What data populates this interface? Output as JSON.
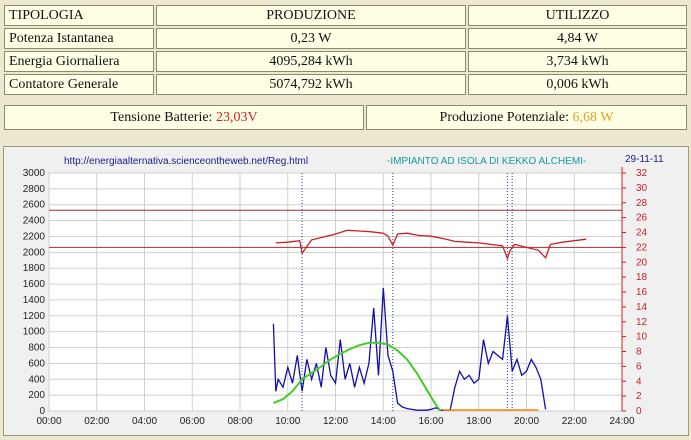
{
  "table": {
    "headers": [
      "TIPOLOGIA",
      "PRODUZIONE",
      "UTILIZZO"
    ],
    "rows": [
      {
        "label": "Potenza Istantanea",
        "produzione": "0,23 W",
        "utilizzo": "4,84 W"
      },
      {
        "label": "Energia Giornaliera",
        "produzione": "4095,284 kWh",
        "utilizzo": "3,734 kWh"
      },
      {
        "label": "Contatore Generale",
        "produzione": "5074,792 kWh",
        "utilizzo": "0,006 kWh"
      }
    ]
  },
  "status": {
    "tensione_label": "Tensione Batterie:",
    "tensione_value": "23,03V",
    "produzione_label": "Produzione Potenziale:",
    "produzione_value": "6,68 W"
  },
  "chart_data": {
    "type": "line",
    "url": "http://energiaalternativa.scienceontheweb.net/Reg.html",
    "title": "-IMPIANTO AD ISOLA DI KEKKO ALCHEMI-",
    "date": "29-11-11",
    "xlim": [
      0,
      24
    ],
    "x_ticks": [
      "00:00",
      "02:00",
      "04:00",
      "06:00",
      "08:00",
      "10:00",
      "12:00",
      "14:00",
      "16:00",
      "18:00",
      "20:00",
      "22:00",
      "24:00"
    ],
    "ylim_left": [
      0,
      3000
    ],
    "y_ticks_left": [
      "0",
      "200",
      "400",
      "600",
      "800",
      "1000",
      "1200",
      "1400",
      "1600",
      "1800",
      "2000",
      "2200",
      "2400",
      "2600",
      "2800",
      "3000"
    ],
    "ylim_right": [
      0,
      32
    ],
    "y_ticks_right": [
      "0",
      "2",
      "4",
      "6",
      "8",
      "10",
      "12",
      "14",
      "16",
      "18",
      "20",
      "22",
      "24",
      "26",
      "28",
      "30",
      "32"
    ],
    "hlines_right": [
      22,
      27
    ],
    "colors": {
      "utilizzo": "#1010b0",
      "produzione": "#44cc22",
      "tensione": "#cc2020",
      "ref": "#a03030",
      "orange": "#ff8800",
      "grid": "#cfcfcf"
    },
    "series": [
      {
        "key": "tensione",
        "axis": "right",
        "x": [
          9.5,
          10,
          10.5,
          10.6,
          11,
          11.5,
          12,
          12.5,
          13,
          13.5,
          14,
          14.2,
          14.4,
          14.6,
          15,
          15.5,
          16,
          16.5,
          17,
          17.5,
          18,
          18.5,
          19,
          19.2,
          19.3,
          19.5,
          20,
          20.5,
          20.8,
          21,
          21.5,
          22,
          22.5
        ],
        "y": [
          22.6,
          22.7,
          22.9,
          21.2,
          23,
          23.4,
          23.8,
          24.3,
          24.2,
          24.1,
          23.9,
          23.5,
          22.3,
          23.8,
          23.9,
          23.6,
          23.5,
          23.2,
          22.8,
          22.7,
          22.6,
          22.4,
          22.2,
          20.5,
          21.5,
          22.4,
          22.0,
          21.6,
          20.6,
          22.4,
          22.7,
          22.9,
          23.1
        ]
      },
      {
        "key": "utilizzo",
        "axis": "left",
        "x": [
          9.4,
          9.5,
          9.6,
          9.8,
          10,
          10.2,
          10.4,
          10.6,
          10.8,
          11,
          11.2,
          11.4,
          11.6,
          11.8,
          12,
          12.2,
          12.4,
          12.6,
          12.8,
          13,
          13.2,
          13.4,
          13.6,
          13.8,
          14,
          14.2,
          14.4,
          14.6,
          14.8,
          15,
          15.2,
          15.4,
          15.6,
          15.8,
          16,
          16.2,
          16.4,
          16.6,
          16.8,
          17,
          17.2,
          17.4,
          17.6,
          17.8,
          18,
          18.2,
          18.4,
          18.6,
          18.8,
          19,
          19.2,
          19.4,
          19.6,
          19.8,
          20,
          20.2,
          20.4,
          20.6,
          20.8
        ],
        "y": [
          1100,
          250,
          400,
          300,
          550,
          350,
          700,
          250,
          650,
          400,
          600,
          300,
          800,
          450,
          350,
          900,
          400,
          600,
          300,
          550,
          350,
          600,
          1300,
          450,
          1550,
          700,
          500,
          100,
          50,
          30,
          20,
          10,
          10,
          10,
          20,
          40,
          10,
          10,
          10,
          300,
          500,
          400,
          450,
          350,
          400,
          900,
          600,
          750,
          700,
          650,
          1200,
          500,
          650,
          450,
          500,
          650,
          550,
          400,
          20
        ]
      },
      {
        "key": "produzione",
        "axis": "left",
        "x": [
          9.4,
          9.8,
          10.2,
          10.6,
          11,
          11.4,
          11.8,
          12.2,
          12.6,
          13,
          13.4,
          13.8,
          14.2,
          14.6,
          15,
          15.4,
          15.8,
          16.2,
          16.4
        ],
        "y": [
          100,
          150,
          250,
          400,
          480,
          560,
          650,
          720,
          780,
          830,
          860,
          860,
          840,
          760,
          650,
          480,
          280,
          80,
          0
        ]
      }
    ],
    "vlines_dotted": [
      10.6,
      14.4,
      19.2,
      19.4
    ]
  }
}
